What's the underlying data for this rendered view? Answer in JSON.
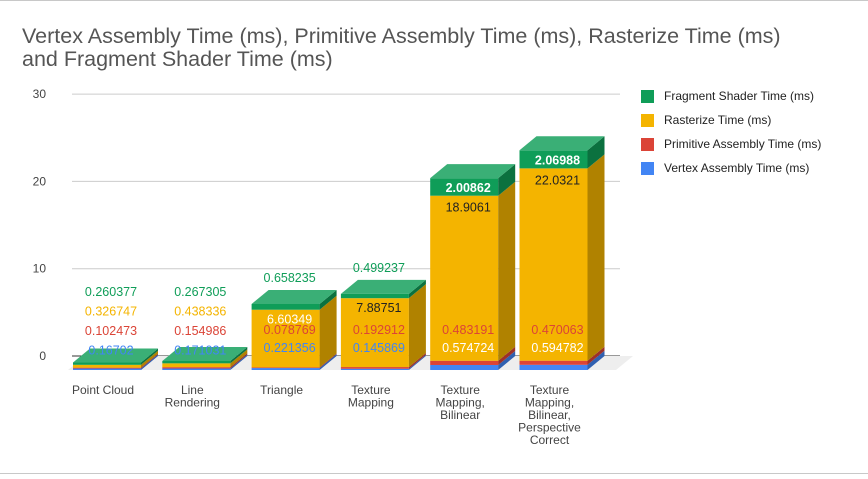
{
  "chart_data": {
    "type": "bar",
    "stacked": true,
    "style": "3d",
    "title": "Vertex Assembly Time (ms), Primitive Assembly Time (ms), Rasterize Time (ms) and Fragment Shader Time (ms)",
    "title_lines": [
      "Vertex Assembly Time (ms), Primitive Assembly Time (ms), Rasterize Time (ms)",
      "and Fragment Shader Time (ms)"
    ],
    "categories": [
      [
        "Point Cloud"
      ],
      [
        "Line",
        "Rendering"
      ],
      [
        "Triangle"
      ],
      [
        "Texture",
        "Mapping"
      ],
      [
        "Texture",
        "Mapping,",
        "Bilinear"
      ],
      [
        "Texture",
        "Mapping,",
        "Bilinear,",
        "Perspective",
        "Correct"
      ]
    ],
    "series": [
      {
        "name": "Vertex Assembly Time (ms)",
        "color": "#4285f4",
        "values": [
          0.16702,
          0.171031,
          0.221356,
          0.145869,
          0.574724,
          0.594782
        ],
        "labels": [
          "0.16702",
          "0.171031",
          "0.221356",
          "0.145869",
          "0.574724",
          "0.594782"
        ]
      },
      {
        "name": "Primitive Assembly Time (ms)",
        "color": "#db4437",
        "values": [
          0.102473,
          0.154986,
          0.078769,
          0.192912,
          0.483191,
          0.470063
        ],
        "labels": [
          "0.102473",
          "0.154986",
          "0.078769",
          "0.192912",
          "0.483191",
          "0.470063"
        ]
      },
      {
        "name": "Rasterize Time (ms)",
        "color": "#f4b400",
        "values": [
          0.326747,
          0.438336,
          6.60349,
          7.88751,
          18.9061,
          22.0321
        ],
        "labels": [
          "0.326747",
          "0.438336",
          "6.60349",
          "7.88751",
          "18.9061",
          "22.0321"
        ]
      },
      {
        "name": "Fragment Shader Time (ms)",
        "color": "#0f9d58",
        "values": [
          0.260377,
          0.267305,
          0.658235,
          0.499237,
          2.00862,
          2.06988
        ],
        "labels": [
          "0.260377",
          "0.267305",
          "0.658235",
          "0.499237",
          "2.00862",
          "2.06988"
        ]
      }
    ],
    "legend_order": [
      3,
      2,
      1,
      0
    ],
    "legend_position": "right",
    "ylim": [
      0,
      30
    ],
    "yticks": [
      "0",
      "10",
      "20",
      "30"
    ],
    "grid": true
  }
}
